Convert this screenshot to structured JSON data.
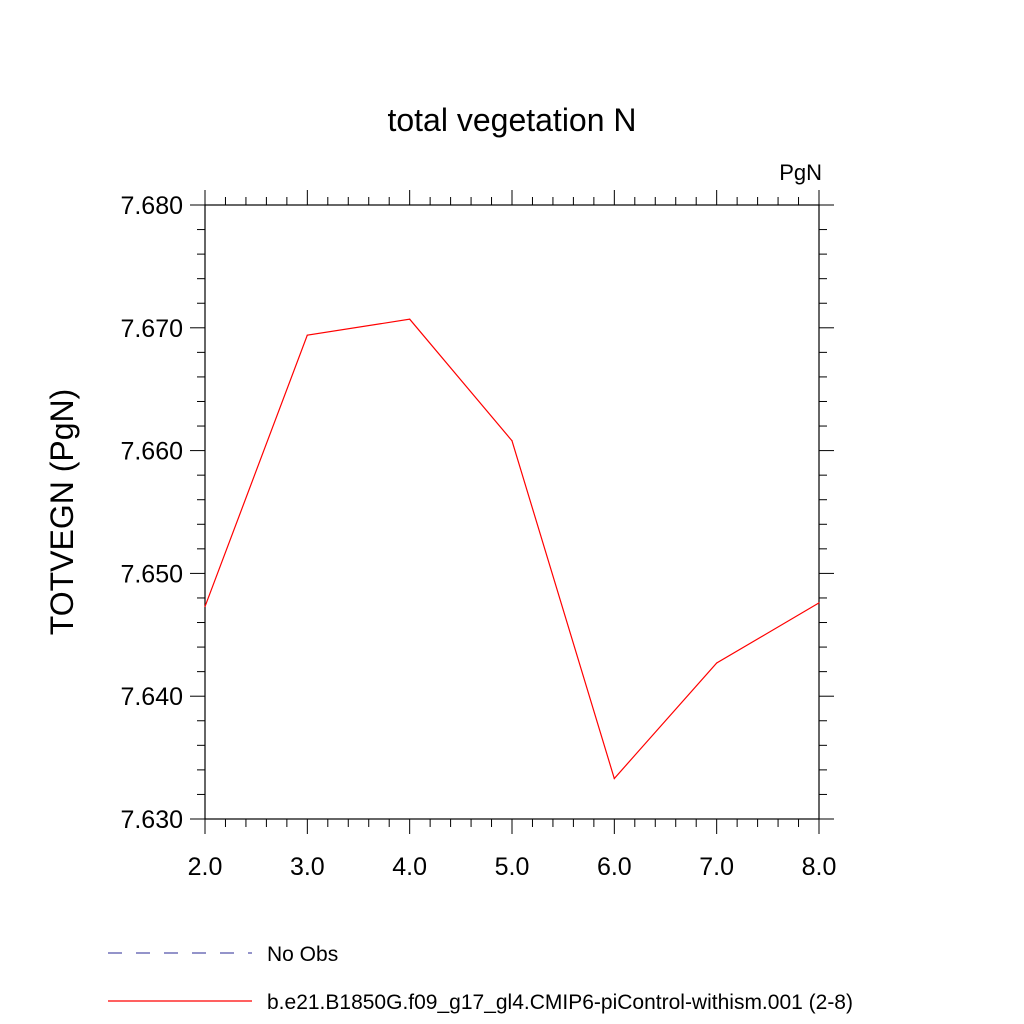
{
  "chart_data": {
    "type": "line",
    "title": "total vegetation N",
    "units_label": "PgN",
    "ylabel": "TOTVEGN  (PgN)",
    "xlabel": "",
    "xlim": [
      2.0,
      8.0
    ],
    "ylim": [
      7.63,
      7.68
    ],
    "x_ticks": [
      "2.0",
      "3.0",
      "4.0",
      "5.0",
      "6.0",
      "7.0",
      "8.0"
    ],
    "y_ticks": [
      "7.630",
      "7.640",
      "7.650",
      "7.660",
      "7.670",
      "7.680"
    ],
    "series": [
      {
        "name": "b.e21.B1850G.f09_g17_gl4.CMIP6-piControl-withism.001 (2-8)",
        "color": "#ff0000",
        "x": [
          2.0,
          3.0,
          4.0,
          5.0,
          6.0,
          7.0,
          8.0
        ],
        "y": [
          7.6473,
          7.6694,
          7.6707,
          7.6608,
          7.6333,
          7.6427,
          7.6476
        ]
      }
    ],
    "legend": [
      {
        "label": "No Obs",
        "color": "#5555aa",
        "style": "dashed"
      },
      {
        "label": "b.e21.B1850G.f09_g17_gl4.CMIP6-piControl-withism.001 (2-8)",
        "color": "#ff0000",
        "style": "solid"
      }
    ],
    "legend_placement": "bottom-left",
    "grid": false
  }
}
